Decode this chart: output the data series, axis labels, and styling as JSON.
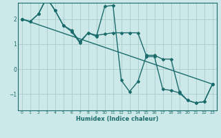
{
  "title": "",
  "xlabel": "Humidex (Indice chaleur)",
  "bg_color": "#cce8e8",
  "grid_color": "#aacccc",
  "line_color": "#1a6b6b",
  "xlim": [
    -0.5,
    23.5
  ],
  "ylim": [
    -1.65,
    2.65
  ],
  "xticks": [
    0,
    1,
    2,
    3,
    4,
    5,
    6,
    7,
    8,
    9,
    10,
    11,
    12,
    13,
    14,
    15,
    16,
    17,
    18,
    19,
    20,
    21,
    22,
    23
  ],
  "yticks": [
    -1,
    0,
    1,
    2
  ],
  "line1_x": [
    0,
    1,
    2,
    3,
    4,
    5,
    6,
    7,
    8,
    9,
    10,
    11,
    12,
    13,
    14,
    15,
    16,
    17,
    18,
    19,
    20,
    21,
    22,
    23
  ],
  "line1_y": [
    2.0,
    1.9,
    2.2,
    2.85,
    2.35,
    1.75,
    1.55,
    1.1,
    1.45,
    1.35,
    1.4,
    1.45,
    1.45,
    1.45,
    1.45,
    0.55,
    0.55,
    0.4,
    0.4,
    -0.9,
    -1.25,
    -1.35,
    -1.3,
    -0.6
  ],
  "line2_x": [
    0,
    1,
    2,
    3,
    4,
    5,
    6,
    7,
    8,
    9,
    10,
    11,
    12,
    13,
    14,
    15,
    16,
    17,
    18,
    19,
    20,
    21,
    22,
    23
  ],
  "line2_y": [
    2.0,
    1.9,
    2.2,
    2.85,
    2.35,
    1.75,
    1.5,
    1.05,
    1.45,
    1.3,
    2.5,
    2.55,
    -0.45,
    -0.9,
    -0.5,
    0.5,
    0.5,
    -0.8,
    -0.85,
    -0.95,
    -1.25,
    -1.35,
    -1.3,
    -0.6
  ],
  "line3_x": [
    0,
    23
  ],
  "line3_y": [
    2.0,
    -0.6
  ]
}
